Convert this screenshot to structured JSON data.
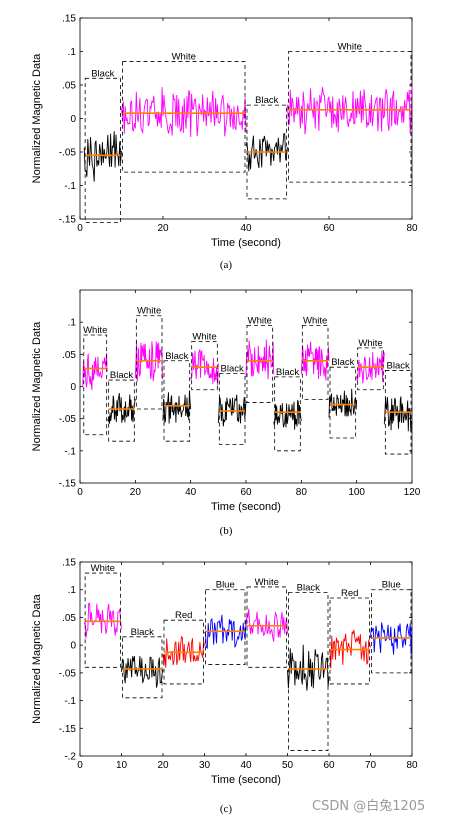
{
  "watermark": "CSDN @白兔1205",
  "chart_data": [
    {
      "type": "line",
      "caption": "(a)",
      "xlabel": "Time (second)",
      "ylabel": "Normalized Magnetic Data",
      "xlim": [
        0,
        80
      ],
      "ylim": [
        -0.15,
        0.15
      ],
      "xticks": [
        0,
        20,
        40,
        60,
        80
      ],
      "yticks": [
        -0.15,
        -0.1,
        -0.05,
        0,
        0.05,
        0.1,
        0.15
      ],
      "segments": [
        {
          "label": "Black",
          "color": "#000000",
          "x0": 1,
          "x1": 10,
          "mean": -0.055,
          "amp": 0.045,
          "box": [
            -0.155,
            0.06
          ]
        },
        {
          "label": "White",
          "color": "#ff00ff",
          "x0": 10,
          "x1": 40,
          "mean": 0.008,
          "amp": 0.04,
          "box": [
            -0.08,
            0.085
          ]
        },
        {
          "label": "Black",
          "color": "#000000",
          "x0": 40,
          "x1": 50,
          "mean": -0.05,
          "amp": 0.035,
          "box": [
            -0.12,
            0.02
          ]
        },
        {
          "label": "White",
          "color": "#ff00ff",
          "x0": 50,
          "x1": 80,
          "mean": 0.013,
          "amp": 0.04,
          "box": [
            -0.095,
            0.1
          ]
        }
      ]
    },
    {
      "type": "line",
      "caption": "(b)",
      "xlabel": "Time (second)",
      "ylabel": "Normalized Magnetic Data",
      "xlim": [
        0,
        120
      ],
      "ylim": [
        -0.15,
        0.15
      ],
      "xticks": [
        0,
        20,
        40,
        60,
        80,
        100,
        120
      ],
      "yticks": [
        -0.15,
        -0.1,
        -0.05,
        0,
        0.05,
        0.1
      ],
      "segments": [
        {
          "label": "White",
          "color": "#ff00ff",
          "x0": 1,
          "x1": 10,
          "mean": 0.028,
          "amp": 0.035,
          "box": [
            -0.075,
            0.08
          ]
        },
        {
          "label": "Black",
          "color": "#000000",
          "x0": 10,
          "x1": 20,
          "mean": -0.035,
          "amp": 0.03,
          "box": [
            -0.085,
            0.01
          ]
        },
        {
          "label": "White",
          "color": "#ff00ff",
          "x0": 20,
          "x1": 30,
          "mean": 0.04,
          "amp": 0.04,
          "box": [
            -0.035,
            0.11
          ]
        },
        {
          "label": "Black",
          "color": "#000000",
          "x0": 30,
          "x1": 40,
          "mean": -0.03,
          "amp": 0.03,
          "box": [
            -0.085,
            0.04
          ]
        },
        {
          "label": "White",
          "color": "#ff00ff",
          "x0": 40,
          "x1": 50,
          "mean": 0.03,
          "amp": 0.03,
          "box": [
            -0.005,
            0.07
          ]
        },
        {
          "label": "Black",
          "color": "#000000",
          "x0": 50,
          "x1": 60,
          "mean": -0.038,
          "amp": 0.03,
          "box": [
            -0.09,
            0.02
          ]
        },
        {
          "label": "White",
          "color": "#ff00ff",
          "x0": 60,
          "x1": 70,
          "mean": 0.04,
          "amp": 0.035,
          "box": [
            -0.025,
            0.095
          ]
        },
        {
          "label": "Black",
          "color": "#000000",
          "x0": 70,
          "x1": 80,
          "mean": -0.04,
          "amp": 0.03,
          "box": [
            -0.1,
            0.015
          ]
        },
        {
          "label": "White",
          "color": "#ff00ff",
          "x0": 80,
          "x1": 90,
          "mean": 0.04,
          "amp": 0.035,
          "box": [
            -0.02,
            0.095
          ]
        },
        {
          "label": "Black",
          "color": "#000000",
          "x0": 90,
          "x1": 100,
          "mean": -0.028,
          "amp": 0.03,
          "box": [
            -0.08,
            0.03
          ]
        },
        {
          "label": "White",
          "color": "#ff00ff",
          "x0": 100,
          "x1": 110,
          "mean": 0.03,
          "amp": 0.03,
          "box": [
            -0.005,
            0.06
          ]
        },
        {
          "label": "Black",
          "color": "#000000",
          "x0": 110,
          "x1": 120,
          "mean": -0.04,
          "amp": 0.035,
          "box": [
            -0.105,
            0.025
          ]
        }
      ]
    },
    {
      "type": "line",
      "caption": "(c)",
      "xlabel": "Time (second)",
      "ylabel": "Normalized Magnetic Data",
      "xlim": [
        0,
        80
      ],
      "ylim": [
        -0.2,
        0.15
      ],
      "xticks": [
        0,
        10,
        20,
        30,
        40,
        50,
        60,
        70,
        80
      ],
      "yticks": [
        -0.2,
        -0.15,
        -0.1,
        -0.05,
        0,
        0.05,
        0.1,
        0.15
      ],
      "segments": [
        {
          "label": "White",
          "color": "#ff00ff",
          "x0": 1,
          "x1": 10,
          "mean": 0.043,
          "amp": 0.04,
          "box": [
            -0.04,
            0.13
          ]
        },
        {
          "label": "Black",
          "color": "#000000",
          "x0": 10,
          "x1": 20,
          "mean": -0.043,
          "amp": 0.035,
          "box": [
            -0.095,
            0.015
          ]
        },
        {
          "label": "Red",
          "color": "#ff0000",
          "x0": 20,
          "x1": 30,
          "mean": -0.013,
          "amp": 0.035,
          "box": [
            -0.07,
            0.045
          ]
        },
        {
          "label": "Blue",
          "color": "#0000ff",
          "x0": 30,
          "x1": 40,
          "mean": 0.025,
          "amp": 0.035,
          "box": [
            -0.035,
            0.1
          ]
        },
        {
          "label": "White",
          "color": "#ff00ff",
          "x0": 40,
          "x1": 50,
          "mean": 0.035,
          "amp": 0.035,
          "box": [
            -0.04,
            0.105
          ]
        },
        {
          "label": "Black",
          "color": "#000000",
          "x0": 50,
          "x1": 60,
          "mean": -0.043,
          "amp": 0.05,
          "box": [
            -0.19,
            0.095
          ]
        },
        {
          "label": "Red",
          "color": "#ff0000",
          "x0": 60,
          "x1": 70,
          "mean": -0.008,
          "amp": 0.04,
          "box": [
            -0.07,
            0.085
          ]
        },
        {
          "label": "Blue",
          "color": "#0000ff",
          "x0": 70,
          "x1": 80,
          "mean": 0.013,
          "amp": 0.035,
          "box": [
            -0.05,
            0.1
          ]
        }
      ],
      "mean_line_color": "#ff8000"
    }
  ]
}
